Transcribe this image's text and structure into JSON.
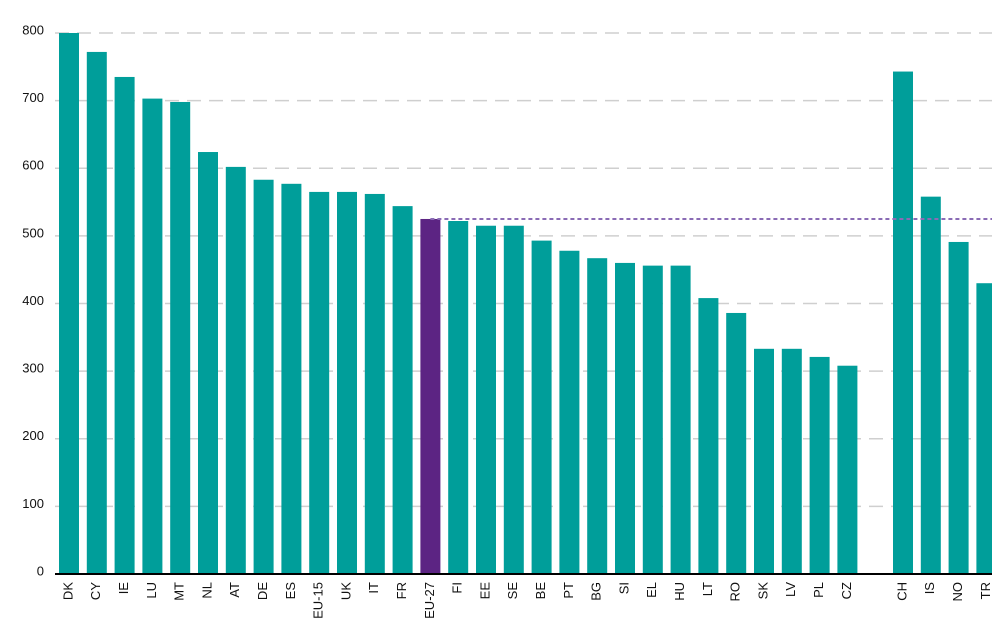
{
  "chart_data": {
    "type": "bar",
    "categories": [
      "DK",
      "CY",
      "IE",
      "LU",
      "MT",
      "NL",
      "AT",
      "DE",
      "ES",
      "EU-15",
      "UK",
      "IT",
      "FR",
      "EU-27",
      "FI",
      "EE",
      "SE",
      "BE",
      "PT",
      "BG",
      "SI",
      "EL",
      "HU",
      "LT",
      "RO",
      "SK",
      "LV",
      "PL",
      "CZ",
      null,
      "CH",
      "IS",
      "NO",
      "TR"
    ],
    "values": [
      800,
      772,
      735,
      703,
      698,
      624,
      602,
      583,
      577,
      565,
      565,
      562,
      544,
      525,
      522,
      515,
      515,
      493,
      478,
      467,
      460,
      456,
      456,
      408,
      386,
      333,
      333,
      321,
      308,
      null,
      743,
      558,
      491,
      430
    ],
    "colors": [
      "#009e9a",
      "#009e9a",
      "#009e9a",
      "#009e9a",
      "#009e9a",
      "#009e9a",
      "#009e9a",
      "#009e9a",
      "#009e9a",
      "#009e9a",
      "#009e9a",
      "#009e9a",
      "#009e9a",
      "#5c2483",
      "#009e9a",
      "#009e9a",
      "#009e9a",
      "#009e9a",
      "#009e9a",
      "#009e9a",
      "#009e9a",
      "#009e9a",
      "#009e9a",
      "#009e9a",
      "#009e9a",
      "#009e9a",
      "#009e9a",
      "#009e9a",
      "#009e9a",
      null,
      "#009e9a",
      "#009e9a",
      "#009e9a",
      "#009e9a"
    ],
    "reference_line": {
      "value": 525,
      "color": "#8a6bb5"
    },
    "ylim": [
      0,
      800
    ],
    "yticks": [
      0,
      100,
      200,
      300,
      400,
      500,
      600,
      700,
      800
    ],
    "grid": true
  }
}
